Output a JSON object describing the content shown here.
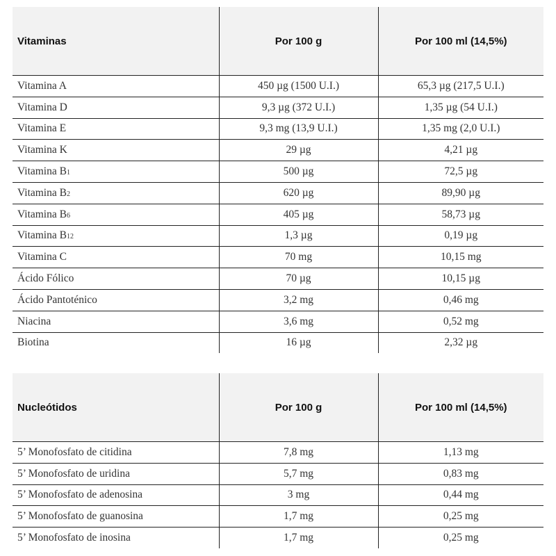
{
  "vitaminas": {
    "headers": [
      "Vitaminas",
      "Por 100 g",
      "Por 100 ml (14,5%)"
    ],
    "rows": [
      {
        "name": "Vitamina A",
        "sub": "",
        "per100g": "450 µg (1500 U.I.)",
        "per100ml": "65,3 µg (217,5 U.I.)"
      },
      {
        "name": "Vitamina D",
        "sub": "",
        "per100g": "9,3 µg (372 U.I.)",
        "per100ml": "1,35 µg (54 U.I.)"
      },
      {
        "name": "Vitamina E",
        "sub": "",
        "per100g": "9,3 mg (13,9 U.I.)",
        "per100ml": "1,35 mg (2,0 U.I.)"
      },
      {
        "name": "Vitamina K",
        "sub": "",
        "per100g": "29 µg",
        "per100ml": "4,21 µg"
      },
      {
        "name": "Vitamina B",
        "sub": "1",
        "per100g": "500 µg",
        "per100ml": "72,5 µg"
      },
      {
        "name": "Vitamina B",
        "sub": "2",
        "per100g": "620 µg",
        "per100ml": "89,90 µg"
      },
      {
        "name": "Vitamina B",
        "sub": "6",
        "per100g": "405 µg",
        "per100ml": "58,73 µg"
      },
      {
        "name": "Vitamina B",
        "sub": "12",
        "per100g": "1,3 µg",
        "per100ml": "0,19 µg"
      },
      {
        "name": "Vitamina C",
        "sub": "",
        "per100g": "70 mg",
        "per100ml": "10,15 mg"
      },
      {
        "name": "Ácido Fólico",
        "sub": "",
        "per100g": "70 µg",
        "per100ml": "10,15 µg"
      },
      {
        "name": "Ácido Pantoténico",
        "sub": "",
        "per100g": "3,2 mg",
        "per100ml": "0,46 mg"
      },
      {
        "name": "Niacina",
        "sub": "",
        "per100g": "3,6 mg",
        "per100ml": "0,52 mg"
      },
      {
        "name": "Biotina",
        "sub": "",
        "per100g": "16 µg",
        "per100ml": "2,32 µg"
      }
    ]
  },
  "nucleotidos": {
    "headers": [
      "Nucleótidos",
      "Por 100 g",
      "Por 100 ml (14,5%)"
    ],
    "rows": [
      {
        "name": "5’ Monofosfato de citidina",
        "sub": "",
        "per100g": "7,8 mg",
        "per100ml": "1,13 mg"
      },
      {
        "name": "5’ Monofosfato de uridina",
        "sub": "",
        "per100g": "5,7 mg",
        "per100ml": "0,83 mg"
      },
      {
        "name": "5’ Monofosfato de adenosina",
        "sub": "",
        "per100g": "3 mg",
        "per100ml": "0,44 mg"
      },
      {
        "name": "5’ Monofosfato de guanosina",
        "sub": "",
        "per100g": "1,7 mg",
        "per100ml": "0,25 mg"
      },
      {
        "name": "5’ Monofosfato de inosina",
        "sub": "",
        "per100g": "1,7 mg",
        "per100ml": "0,25 mg"
      }
    ]
  }
}
